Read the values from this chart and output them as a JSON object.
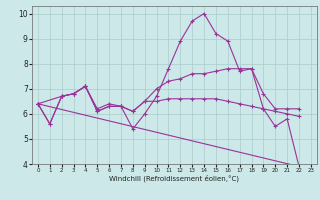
{
  "xlabel": "Windchill (Refroidissement éolien,°C)",
  "background_color": "#cce8e8",
  "grid_color": "#aacccc",
  "line_color": "#993399",
  "xlim": [
    -0.5,
    23.5
  ],
  "ylim": [
    4,
    10.3
  ],
  "xticks": [
    0,
    1,
    2,
    3,
    4,
    5,
    6,
    7,
    8,
    9,
    10,
    11,
    12,
    13,
    14,
    15,
    16,
    17,
    18,
    19,
    20,
    21,
    22,
    23
  ],
  "yticks": [
    4,
    5,
    6,
    7,
    8,
    9,
    10
  ],
  "line1_x": [
    0,
    1,
    2,
    3,
    4,
    5,
    6,
    7,
    8,
    9,
    10,
    11,
    12,
    13,
    14,
    15,
    16,
    17,
    18,
    19,
    20,
    21,
    22
  ],
  "line1_y": [
    6.4,
    5.6,
    6.7,
    6.8,
    7.1,
    6.2,
    6.4,
    6.3,
    5.4,
    6.0,
    6.7,
    7.8,
    8.9,
    9.7,
    10.0,
    9.2,
    8.9,
    7.7,
    7.8,
    6.2,
    5.5,
    5.8,
    3.9
  ],
  "line2_x": [
    0,
    1,
    2,
    3,
    4,
    5,
    6,
    7,
    8,
    9,
    10,
    11,
    12,
    13,
    14,
    15,
    16,
    17,
    18,
    19,
    20,
    21,
    22
  ],
  "line2_y": [
    6.4,
    5.6,
    6.7,
    6.8,
    7.1,
    6.1,
    6.3,
    6.3,
    6.1,
    6.5,
    7.0,
    7.3,
    7.4,
    7.6,
    7.6,
    7.7,
    7.8,
    7.8,
    7.8,
    6.8,
    6.2,
    6.2,
    6.2
  ],
  "line3_x": [
    0,
    2,
    3,
    4,
    5,
    6,
    7,
    8,
    9,
    10,
    11,
    12,
    13,
    14,
    15,
    16,
    17,
    18,
    19,
    20,
    21,
    22
  ],
  "line3_y": [
    6.4,
    6.7,
    6.8,
    7.1,
    6.1,
    6.3,
    6.3,
    6.1,
    6.5,
    6.5,
    6.6,
    6.6,
    6.6,
    6.6,
    6.6,
    6.5,
    6.4,
    6.3,
    6.2,
    6.1,
    6.0,
    5.9
  ],
  "line4_x": [
    0,
    22
  ],
  "line4_y": [
    6.4,
    3.9
  ]
}
